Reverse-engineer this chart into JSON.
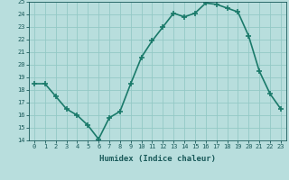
{
  "x": [
    0,
    1,
    2,
    3,
    4,
    5,
    6,
    7,
    8,
    9,
    10,
    11,
    12,
    13,
    14,
    15,
    16,
    17,
    18,
    19,
    20,
    21,
    22,
    23
  ],
  "y": [
    18.5,
    18.5,
    17.5,
    16.5,
    16.0,
    15.2,
    14.1,
    15.8,
    16.3,
    18.5,
    20.6,
    21.9,
    23.0,
    24.1,
    23.8,
    24.1,
    24.9,
    24.8,
    24.5,
    24.2,
    22.3,
    19.5,
    17.7,
    16.5
  ],
  "line_color": "#1a7a6a",
  "bg_color": "#b8dedd",
  "grid_color": "#93c9c6",
  "text_color": "#1a5a5a",
  "xlabel": "Humidex (Indice chaleur)",
  "ylim": [
    14,
    25
  ],
  "xlim_min": -0.5,
  "xlim_max": 23.5,
  "yticks": [
    14,
    15,
    16,
    17,
    18,
    19,
    20,
    21,
    22,
    23,
    24,
    25
  ],
  "xticks": [
    0,
    1,
    2,
    3,
    4,
    5,
    6,
    7,
    8,
    9,
    10,
    11,
    12,
    13,
    14,
    15,
    16,
    17,
    18,
    19,
    20,
    21,
    22,
    23
  ],
  "xtick_labels": [
    "0",
    "1",
    "2",
    "3",
    "4",
    "5",
    "6",
    "7",
    "8",
    "9",
    "10",
    "11",
    "12",
    "13",
    "14",
    "15",
    "16",
    "17",
    "18",
    "19",
    "20",
    "21",
    "22",
    "23"
  ],
  "ytick_labels": [
    "14",
    "15",
    "16",
    "17",
    "18",
    "19",
    "20",
    "21",
    "22",
    "23",
    "24",
    "25"
  ],
  "marker": "+",
  "linewidth": 1.2,
  "markersize": 4,
  "tick_fontsize": 5,
  "xlabel_fontsize": 6.5
}
